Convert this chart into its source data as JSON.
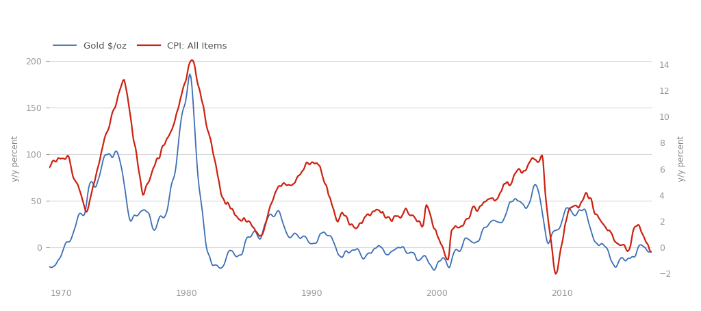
{
  "legend_labels": [
    "Gold $/oz",
    "CPI: All Items"
  ],
  "gold_color": "#3a6eb5",
  "cpi_color": "#cc2211",
  "left_ylabel": "y/y percent",
  "right_ylabel": "y/y percent",
  "left_ylim": [
    -35,
    225
  ],
  "right_ylim": [
    -2.5,
    16.07
  ],
  "left_yticks": [
    0,
    50,
    100,
    150,
    200
  ],
  "right_yticks": [
    -2,
    0,
    2,
    4,
    6,
    8,
    10,
    12,
    14
  ],
  "xlim_start": 1969.0,
  "xlim_end": 2017.2,
  "xticks": [
    1970,
    1980,
    1990,
    2000,
    2010
  ],
  "background_color": "#ffffff",
  "grid_color": "#d8d8d8",
  "gold_linewidth": 1.3,
  "cpi_linewidth": 1.6
}
